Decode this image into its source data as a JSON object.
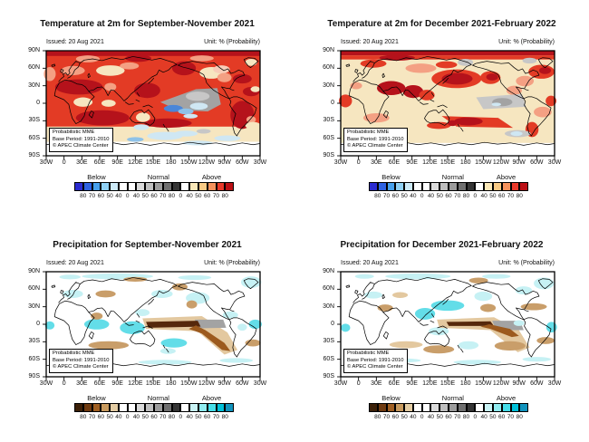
{
  "page": {
    "background": "#ffffff"
  },
  "annotation": [
    "Probabilistic MME",
    "Base Period: 1991-2010",
    "© APEC Climate Center"
  ],
  "colorbar_sections": [
    "Below",
    "Normal",
    "Above"
  ],
  "axes": {
    "yticks": [
      "90N",
      "60N",
      "30N",
      "0",
      "30S",
      "60S",
      "90S"
    ],
    "xticks": [
      "30W",
      "0",
      "30E",
      "60E",
      "90E",
      "120E",
      "150E",
      "180",
      "150W",
      "120W",
      "90W",
      "60W",
      "30W"
    ]
  },
  "colorbars": {
    "temperature": {
      "cells": [
        "#2b2bd0",
        "#2e62e2",
        "#47a0ec",
        "#8fd0f4",
        "#cdeaf8",
        "#ffffff",
        "#ffffff",
        "#dadada",
        "#bfbfbf",
        "#9c9c9c",
        "#6f6f6f",
        "#353535",
        "#ffffff",
        "#fbe8b8",
        "#f9ca84",
        "#f5925c",
        "#e8392a",
        "#bb0f14"
      ],
      "edge_labels": [
        "80",
        "70",
        "60",
        "50",
        "40",
        "0",
        "40",
        "50",
        "60",
        "70",
        "80",
        "0",
        "40",
        "50",
        "60",
        "70",
        "80"
      ]
    },
    "precipitation": {
      "cells": [
        "#3c2008",
        "#6f3a10",
        "#a05f22",
        "#c89a5e",
        "#e4cda4",
        "#ffffff",
        "#ffffff",
        "#dadada",
        "#bfbfbf",
        "#9c9c9c",
        "#6f6f6f",
        "#353535",
        "#ffffff",
        "#c9f3f5",
        "#90ecf0",
        "#45dde8",
        "#00c0d8",
        "#1193bd"
      ],
      "edge_labels": [
        "80",
        "70",
        "60",
        "50",
        "40",
        "0",
        "40",
        "50",
        "60",
        "70",
        "80",
        "0",
        "40",
        "50",
        "60",
        "70",
        "80"
      ]
    }
  },
  "palette": {
    "dr": "#b5121b",
    "rd": "#e33b25",
    "sa": "#f4a083",
    "pk": "#f8cdb8",
    "cr": "#f6e6c0",
    "wh": "#ffffff",
    "gy": "#a3a3a3",
    "lg": "#c7c7c7",
    "bl": "#4a86d8",
    "lb": "#8fc2e8",
    "pb": "#cfe7f3",
    "db": "#56280c",
    "br": "#9c5a1e",
    "tn": "#c99e6a",
    "lt": "#e3c89f",
    "cy": "#63dde8",
    "pc": "#c6f1f4"
  },
  "panels": [
    {
      "id": "temperature-son",
      "title": "Temperature at 2m for September-November 2021",
      "issued": "Issued: 20 Aug 2021",
      "unit": "Unit: % (Probability)",
      "colorbar": "temperature",
      "map": "t2m_son"
    },
    {
      "id": "temperature-djf",
      "title": "Temperature at 2m for December 2021-February 2022",
      "issued": "Issued: 20 Aug 2021",
      "unit": "Unit: % (Probability)",
      "colorbar": "temperature",
      "map": "t2m_djf"
    },
    {
      "id": "precipitation-son",
      "title": "Precipitation for September-November 2021",
      "issued": "Issued: 20 Aug 2021",
      "unit": "Unit: % (Probability)",
      "colorbar": "precipitation",
      "map": "pr_son"
    },
    {
      "id": "precipitation-djf",
      "title": "Precipitation for December 2021-February 2022",
      "issued": "Issued: 20 Aug 2021",
      "unit": "Unit: % (Probability)",
      "colorbar": "precipitation",
      "map": "pr_djf"
    }
  ],
  "maps": {
    "t2m_son": {
      "shapes": [
        [
          "r",
          0,
          0,
          360,
          180,
          "rd"
        ],
        [
          "r",
          0,
          130,
          360,
          28,
          "cr"
        ],
        [
          "r",
          0,
          156,
          360,
          24,
          "wh"
        ],
        [
          "e",
          60,
          143,
          28,
          6,
          "pb"
        ],
        [
          "e",
          200,
          146,
          30,
          7,
          "pb"
        ],
        [
          "e",
          305,
          150,
          22,
          5,
          "pb"
        ],
        [
          "e",
          150,
          152,
          14,
          4,
          "lb"
        ],
        [
          "e",
          255,
          158,
          25,
          4,
          "pb"
        ],
        [
          "r",
          0,
          0,
          360,
          9,
          "dr"
        ],
        [
          "e",
          70,
          14,
          20,
          6,
          "sa"
        ],
        [
          "e",
          155,
          13,
          22,
          6,
          "dr"
        ],
        [
          "e",
          262,
          13,
          20,
          5,
          "sa"
        ],
        [
          "e",
          6,
          40,
          10,
          12,
          "sa"
        ],
        [
          "e",
          45,
          34,
          20,
          8,
          "sa"
        ],
        [
          "e",
          108,
          34,
          24,
          9,
          "cr"
        ],
        [
          "e",
          140,
          26,
          16,
          6,
          "sa"
        ],
        [
          "e",
          278,
          38,
          20,
          10,
          "cr"
        ],
        [
          "e",
          295,
          32,
          14,
          7,
          "pk"
        ],
        [
          "e",
          300,
          46,
          12,
          8,
          "sa"
        ],
        [
          "e",
          345,
          20,
          10,
          6,
          "cr"
        ],
        [
          "e",
          232,
          30,
          20,
          12,
          "dr"
        ],
        [
          "e",
          55,
          62,
          40,
          13,
          "dr"
        ],
        [
          "e",
          62,
          88,
          16,
          8,
          "cr"
        ],
        [
          "e",
          105,
          90,
          12,
          6,
          "cr"
        ],
        [
          "e",
          108,
          62,
          10,
          7,
          "sa"
        ],
        [
          "e",
          170,
          68,
          22,
          13,
          "dr"
        ],
        [
          "e",
          95,
          115,
          45,
          13,
          "dr"
        ],
        [
          "e",
          330,
          110,
          20,
          24,
          "dr"
        ],
        [
          "e",
          345,
          118,
          8,
          6,
          "sa"
        ],
        [
          "e",
          205,
          124,
          40,
          8,
          "dr"
        ],
        [
          "e",
          330,
          48,
          16,
          8,
          "dr"
        ],
        [
          "e",
          345,
          70,
          14,
          8,
          "dr"
        ],
        [
          "e",
          352,
          66,
          8,
          5,
          "cr"
        ],
        [
          "p",
          "192,88 252,66 288,64 294,92 272,104 222,102",
          "gy"
        ],
        [
          "e",
          255,
          78,
          20,
          8,
          "lg"
        ],
        [
          "e",
          214,
          99,
          16,
          6,
          "bl"
        ],
        [
          "e",
          235,
          104,
          13,
          5,
          "lb"
        ],
        [
          "e",
          257,
          95,
          15,
          6,
          "pb"
        ],
        [
          "e",
          243,
          112,
          12,
          4,
          "pb"
        ],
        [
          "e",
          163,
          114,
          12,
          8,
          "cr"
        ],
        [
          "e",
          160,
          131,
          13,
          5,
          "pb"
        ],
        [
          "e",
          348,
          128,
          13,
          6,
          "cr"
        ],
        [
          "e",
          30,
          142,
          22,
          6,
          "lb"
        ],
        [
          "e",
          235,
          142,
          20,
          5,
          "pb"
        ],
        [
          "e",
          265,
          138,
          12,
          4,
          "lg"
        ]
      ]
    },
    "t2m_djf": {
      "shapes": [
        [
          "r",
          0,
          0,
          360,
          180,
          "cr"
        ],
        [
          "r",
          0,
          0,
          360,
          8,
          "dr"
        ],
        [
          "r",
          0,
          8,
          360,
          7,
          "rd"
        ],
        [
          "e",
          95,
          12,
          30,
          5,
          "dr"
        ],
        [
          "e",
          210,
          20,
          13,
          6,
          "lg"
        ],
        [
          "e",
          318,
          17,
          12,
          5,
          "lg"
        ],
        [
          "e",
          55,
          22,
          22,
          7,
          "rd"
        ],
        [
          "e",
          135,
          30,
          26,
          8,
          "sa"
        ],
        [
          "e",
          178,
          24,
          18,
          6,
          "rd"
        ],
        [
          "e",
          195,
          48,
          42,
          16,
          "rd"
        ],
        [
          "e",
          196,
          48,
          26,
          10,
          "dr"
        ],
        [
          "e",
          252,
          46,
          17,
          11,
          "rd"
        ],
        [
          "e",
          255,
          45,
          10,
          6,
          "dr"
        ],
        [
          "e",
          338,
          36,
          22,
          12,
          "rd"
        ],
        [
          "e",
          344,
          34,
          10,
          6,
          "dr"
        ],
        [
          "e",
          310,
          52,
          15,
          9,
          "sa"
        ],
        [
          "e",
          292,
          68,
          13,
          8,
          "sa"
        ],
        [
          "e",
          85,
          64,
          24,
          12,
          "dr"
        ],
        [
          "e",
          122,
          70,
          17,
          11,
          "dr"
        ],
        [
          "e",
          145,
          76,
          13,
          9,
          "rd"
        ],
        [
          "e",
          8,
          86,
          11,
          11,
          "rd"
        ],
        [
          "e",
          354,
          86,
          9,
          9,
          "rd"
        ],
        [
          "e",
          26,
          60,
          10,
          6,
          "sa"
        ],
        [
          "p",
          "170,112 265,115 290,132 195,130",
          "rd"
        ],
        [
          "e",
          215,
          121,
          24,
          7,
          "dr"
        ],
        [
          "e",
          322,
          135,
          11,
          13,
          "rd"
        ],
        [
          "e",
          60,
          115,
          22,
          8,
          "sa"
        ],
        [
          "e",
          340,
          105,
          15,
          9,
          "sa"
        ],
        [
          "p",
          "228,80 305,74 312,96 240,100",
          "lg"
        ],
        [
          "e",
          272,
          88,
          17,
          7,
          "gy"
        ],
        [
          "e",
          262,
          92,
          8,
          3,
          "pb"
        ],
        [
          "e",
          298,
          142,
          22,
          6,
          "lg"
        ],
        [
          "e",
          296,
          142,
          10,
          4,
          "pb"
        ],
        [
          "e",
          165,
          128,
          20,
          6,
          "rd"
        ],
        [
          "e",
          188,
          124,
          8,
          5,
          "dr"
        ],
        [
          "r",
          0,
          158,
          360,
          22,
          "wh"
        ]
      ]
    },
    "pr_son": {
      "shapes": [
        [
          "r",
          0,
          0,
          360,
          180,
          "wh"
        ],
        [
          "e",
          120,
          8,
          60,
          5,
          "pc"
        ],
        [
          "e",
          250,
          10,
          28,
          4,
          "pc"
        ],
        [
          "e",
          40,
          9,
          18,
          4,
          "pc"
        ],
        [
          "e",
          150,
          13,
          20,
          4,
          "tn"
        ],
        [
          "e",
          225,
          26,
          13,
          6,
          "tn"
        ],
        [
          "e",
          345,
          18,
          17,
          10,
          "pc"
        ],
        [
          "e",
          255,
          45,
          20,
          10,
          "pc"
        ],
        [
          "e",
          195,
          38,
          18,
          7,
          "pc"
        ],
        [
          "e",
          45,
          38,
          17,
          7,
          "pc"
        ],
        [
          "e",
          100,
          38,
          17,
          6,
          "tn"
        ],
        [
          "e",
          245,
          56,
          9,
          7,
          "tn"
        ],
        [
          "e",
          85,
          90,
          21,
          9,
          "cy"
        ],
        [
          "e",
          145,
          96,
          21,
          11,
          "cy"
        ],
        [
          "e",
          352,
          90,
          11,
          8,
          "cy"
        ],
        [
          "e",
          6,
          92,
          8,
          7,
          "cy"
        ],
        [
          "e",
          310,
          74,
          13,
          6,
          "pc"
        ],
        [
          "p",
          "162,80 262,76 305,104 322,134 300,142 255,102 168,98",
          "lt"
        ],
        [
          "p",
          "250,82 298,82 303,96 255,97",
          "gy"
        ],
        [
          "p",
          "168,86 255,84 260,94 172,96",
          "db"
        ],
        [
          "p",
          "252,92 268,100 300,122 310,136 296,134 262,106 240,98",
          "br"
        ],
        [
          "e",
          215,
          122,
          22,
          8,
          "cy"
        ],
        [
          "e",
          205,
          136,
          13,
          5,
          "pc"
        ],
        [
          "e",
          105,
          126,
          34,
          7,
          "tn"
        ],
        [
          "e",
          348,
          122,
          13,
          6,
          "tn"
        ],
        [
          "e",
          85,
          76,
          10,
          6,
          "tn"
        ],
        [
          "e",
          70,
          152,
          40,
          4,
          "pc"
        ],
        [
          "e",
          200,
          155,
          45,
          4,
          "pc"
        ],
        [
          "e",
          320,
          152,
          28,
          4,
          "pc"
        ],
        [
          "e",
          330,
          95,
          8,
          6,
          "pc"
        ],
        [
          "e",
          162,
          70,
          12,
          6,
          "pc"
        ]
      ]
    },
    "pr_djf": {
      "shapes": [
        [
          "r",
          0,
          0,
          360,
          180,
          "wh"
        ],
        [
          "e",
          130,
          8,
          55,
          5,
          "pc"
        ],
        [
          "e",
          262,
          8,
          24,
          4,
          "pc"
        ],
        [
          "e",
          40,
          8,
          16,
          4,
          "pc"
        ],
        [
          "e",
          232,
          15,
          16,
          5,
          "tn"
        ],
        [
          "e",
          342,
          20,
          17,
          10,
          "pc"
        ],
        [
          "e",
          308,
          32,
          14,
          7,
          "pc"
        ],
        [
          "e",
          240,
          42,
          15,
          8,
          "pc"
        ],
        [
          "e",
          180,
          58,
          28,
          9,
          "cy"
        ],
        [
          "e",
          142,
          72,
          17,
          10,
          "cy"
        ],
        [
          "e",
          165,
          102,
          17,
          7,
          "pc"
        ],
        [
          "e",
          355,
          95,
          9,
          9,
          "cy"
        ],
        [
          "e",
          8,
          96,
          8,
          7,
          "cy"
        ],
        [
          "e",
          325,
          60,
          22,
          6,
          "tn"
        ],
        [
          "e",
          248,
          62,
          13,
          7,
          "tn"
        ],
        [
          "e",
          75,
          62,
          13,
          6,
          "tn"
        ],
        [
          "e",
          55,
          40,
          15,
          6,
          "pc"
        ],
        [
          "e",
          100,
          40,
          13,
          5,
          "lt"
        ],
        [
          "p",
          "162,82 258,78 300,100 318,130 298,138 252,100 166,96",
          "lt"
        ],
        [
          "p",
          "255,84 302,84 308,100 262,100",
          "gy"
        ],
        [
          "p",
          "178,86 252,85 258,93 182,93",
          "db"
        ],
        [
          "p",
          "250,90 285,98 300,110 288,112 252,98 235,94",
          "br"
        ],
        [
          "e",
          285,
          127,
          26,
          8,
          "tn"
        ],
        [
          "e",
          165,
          133,
          26,
          7,
          "tn"
        ],
        [
          "e",
          345,
          118,
          15,
          6,
          "tn"
        ],
        [
          "e",
          215,
          126,
          17,
          7,
          "pc"
        ],
        [
          "e",
          110,
          125,
          28,
          6,
          "lt"
        ],
        [
          "e",
          90,
          152,
          45,
          4,
          "pc"
        ],
        [
          "e",
          230,
          155,
          40,
          4,
          "pc"
        ],
        [
          "e",
          330,
          150,
          24,
          4,
          "pc"
        ],
        [
          "e",
          300,
          88,
          9,
          5,
          "pc"
        ]
      ]
    }
  }
}
